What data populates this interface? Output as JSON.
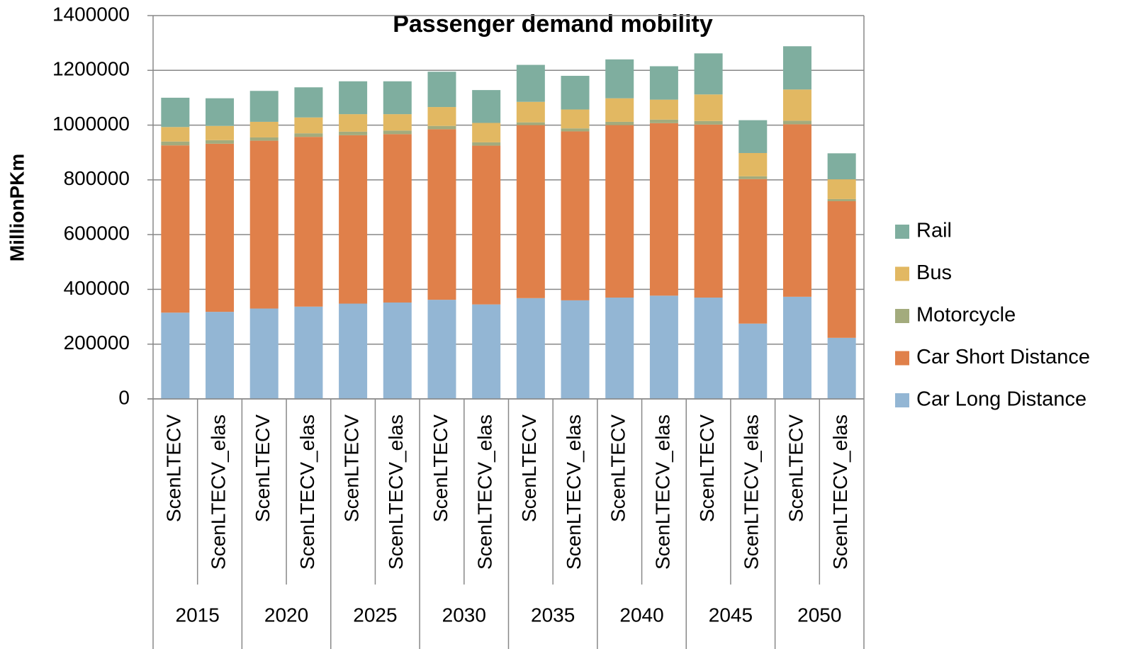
{
  "chart_data": {
    "type": "stacked_bar",
    "title": "Passenger demand mobility",
    "y_label": "MillionPKm",
    "categories": [
      "ScenLTECV",
      "ScenLTECV_elas",
      "ScenLTECV",
      "ScenLTECV_elas",
      "ScenLTECV",
      "ScenLTECV_elas",
      "ScenLTECV",
      "ScenLTECV_elas",
      "ScenLTECV",
      "ScenLTECV_elas",
      "ScenLTECV",
      "ScenLTECV_elas",
      "ScenLTECV",
      "ScenLTECV_elas",
      "ScenLTECV",
      "ScenLTECV_elas"
    ],
    "groups": [
      "2015",
      "2020",
      "2025",
      "2030",
      "2035",
      "2040",
      "2045",
      "2050"
    ],
    "series": [
      {
        "name": "Car Long Distance",
        "color": "#93b6d4",
        "values": [
          315000,
          318000,
          330000,
          337000,
          348000,
          352000,
          362000,
          345000,
          368000,
          360000,
          370000,
          377000,
          370000,
          275000,
          373000,
          223000
        ]
      },
      {
        "name": "Car Short Distance",
        "color": "#e0804a",
        "values": [
          611000,
          614000,
          613000,
          620000,
          615000,
          615000,
          623000,
          580000,
          632000,
          617000,
          630000,
          630000,
          632000,
          528000,
          630000,
          499000
        ]
      },
      {
        "name": "Motorcycle",
        "color": "#a3ab7d",
        "values": [
          14000,
          13000,
          12000,
          13000,
          13000,
          13000,
          12000,
          12000,
          10000,
          11000,
          12000,
          13000,
          13000,
          10000,
          13000,
          8000
        ]
      },
      {
        "name": "Bus",
        "color": "#e2b862",
        "values": [
          53000,
          52000,
          57000,
          58000,
          64000,
          60000,
          69000,
          71000,
          75000,
          69000,
          86000,
          73000,
          97000,
          85000,
          114000,
          72000
        ]
      },
      {
        "name": "Rail",
        "color": "#7fae9f",
        "values": [
          107000,
          101000,
          113000,
          110000,
          120000,
          120000,
          129000,
          120000,
          135000,
          123000,
          142000,
          122000,
          150000,
          120000,
          158000,
          95000
        ]
      }
    ],
    "ylim": [
      0,
      1400000
    ],
    "yticks": [
      0,
      200000,
      400000,
      600000,
      800000,
      1000000,
      1200000,
      1400000
    ],
    "grid": true,
    "legend": "right"
  }
}
